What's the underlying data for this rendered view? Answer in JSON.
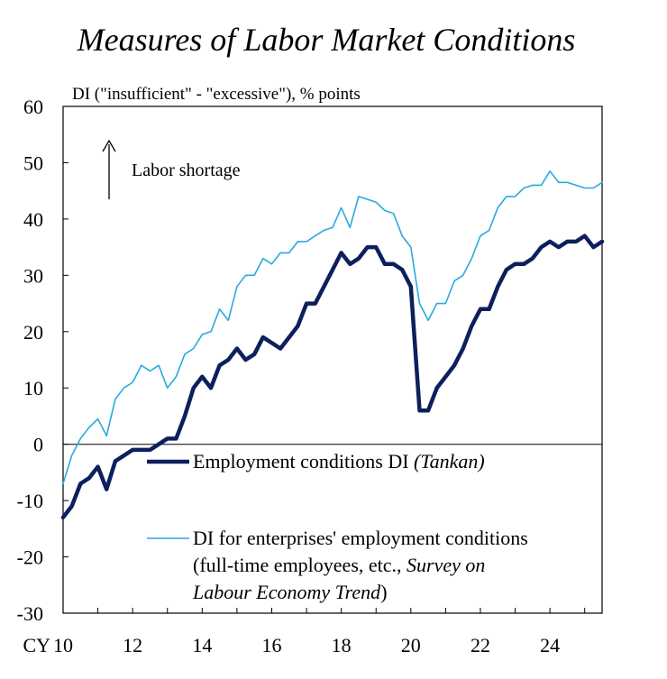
{
  "chart_data": {
    "type": "line",
    "title": "Measures of Labor Market Conditions",
    "ylabel": "DI (\"insufficient\" - \"excessive\"), % points",
    "xlabel": "",
    "x_prefix": "CY",
    "x_range": [
      2010,
      2025.5
    ],
    "ylim": [
      -30,
      60
    ],
    "yticks": [
      "60",
      "50",
      "40",
      "30",
      "20",
      "10",
      "0",
      "-10",
      "-20",
      "-30"
    ],
    "xticks": [
      "10",
      "12",
      "14",
      "16",
      "18",
      "20",
      "22",
      "24"
    ],
    "annotation": "Labor shortage",
    "legend_tankan": {
      "label": "Employment conditions DI",
      "source": "(Tankan)"
    },
    "legend_survey": {
      "line1": "DI for enterprises' employment conditions",
      "line2_prefix": "(full-time employees, etc., ",
      "line2_italic": "Survey on",
      "line3_italic": "Labour Economy Trend",
      "line3_suffix": ")"
    },
    "series": [
      {
        "name": "Employment conditions DI (Tankan)",
        "color": "#0d1f5c",
        "x": [
          2010.0,
          2010.25,
          2010.5,
          2010.75,
          2011.0,
          2011.25,
          2011.5,
          2011.75,
          2012.0,
          2012.25,
          2012.5,
          2012.75,
          2013.0,
          2013.25,
          2013.5,
          2013.75,
          2014.0,
          2014.25,
          2014.5,
          2014.75,
          2015.0,
          2015.25,
          2015.5,
          2015.75,
          2016.0,
          2016.25,
          2016.5,
          2016.75,
          2017.0,
          2017.25,
          2017.5,
          2017.75,
          2018.0,
          2018.25,
          2018.5,
          2018.75,
          2019.0,
          2019.25,
          2019.5,
          2019.75,
          2020.0,
          2020.25,
          2020.5,
          2020.75,
          2021.0,
          2021.25,
          2021.5,
          2021.75,
          2022.0,
          2022.25,
          2022.5,
          2022.75,
          2023.0,
          2023.25,
          2023.5,
          2023.75,
          2024.0,
          2024.25,
          2024.5,
          2024.75,
          2025.0,
          2025.25,
          2025.5
        ],
        "values": [
          -13,
          -11,
          -7,
          -6,
          -4,
          -8,
          -3,
          -2,
          -1,
          -1,
          -1,
          0,
          1,
          1,
          5,
          10,
          12,
          10,
          14,
          15,
          17,
          15,
          16,
          19,
          18,
          17,
          19,
          21,
          25,
          25,
          28,
          31,
          34,
          32,
          33,
          35,
          35,
          32,
          32,
          31,
          28,
          6,
          6,
          10,
          12,
          14,
          17,
          21,
          24,
          24,
          28,
          31,
          32,
          32,
          33,
          35,
          36,
          35,
          36,
          36,
          37,
          35,
          36
        ]
      },
      {
        "name": "DI for enterprises' employment conditions (full-time employees, etc., Survey on Labour Economy Trend)",
        "color": "#29aadf",
        "x": [
          2010.0,
          2010.25,
          2010.5,
          2010.75,
          2011.0,
          2011.25,
          2011.5,
          2011.75,
          2012.0,
          2012.25,
          2012.5,
          2012.75,
          2013.0,
          2013.25,
          2013.5,
          2013.75,
          2014.0,
          2014.25,
          2014.5,
          2014.75,
          2015.0,
          2015.25,
          2015.5,
          2015.75,
          2016.0,
          2016.25,
          2016.5,
          2016.75,
          2017.0,
          2017.25,
          2017.5,
          2017.75,
          2018.0,
          2018.25,
          2018.5,
          2018.75,
          2019.0,
          2019.25,
          2019.5,
          2019.75,
          2020.0,
          2020.25,
          2020.5,
          2020.75,
          2021.0,
          2021.25,
          2021.5,
          2021.75,
          2022.0,
          2022.25,
          2022.5,
          2022.75,
          2023.0,
          2023.25,
          2023.5,
          2023.75,
          2024.0,
          2024.25,
          2024.5,
          2024.75,
          2025.0,
          2025.25,
          2025.5
        ],
        "values": [
          -7,
          -2,
          1,
          3,
          4.5,
          1.5,
          8,
          10,
          11,
          14,
          13,
          14,
          10,
          12,
          16,
          17,
          19.5,
          20,
          24,
          22,
          28,
          30,
          30,
          33,
          32,
          34,
          34,
          36,
          36,
          37,
          38,
          38.5,
          42,
          38.5,
          44,
          43.5,
          43,
          41.5,
          41,
          37,
          35,
          25,
          22,
          25,
          25,
          29,
          30,
          33,
          37,
          38,
          42,
          44,
          44,
          45.5,
          46,
          46,
          48.5,
          46.5,
          46.5,
          46,
          45.5,
          45.5,
          46.5
        ]
      }
    ]
  }
}
